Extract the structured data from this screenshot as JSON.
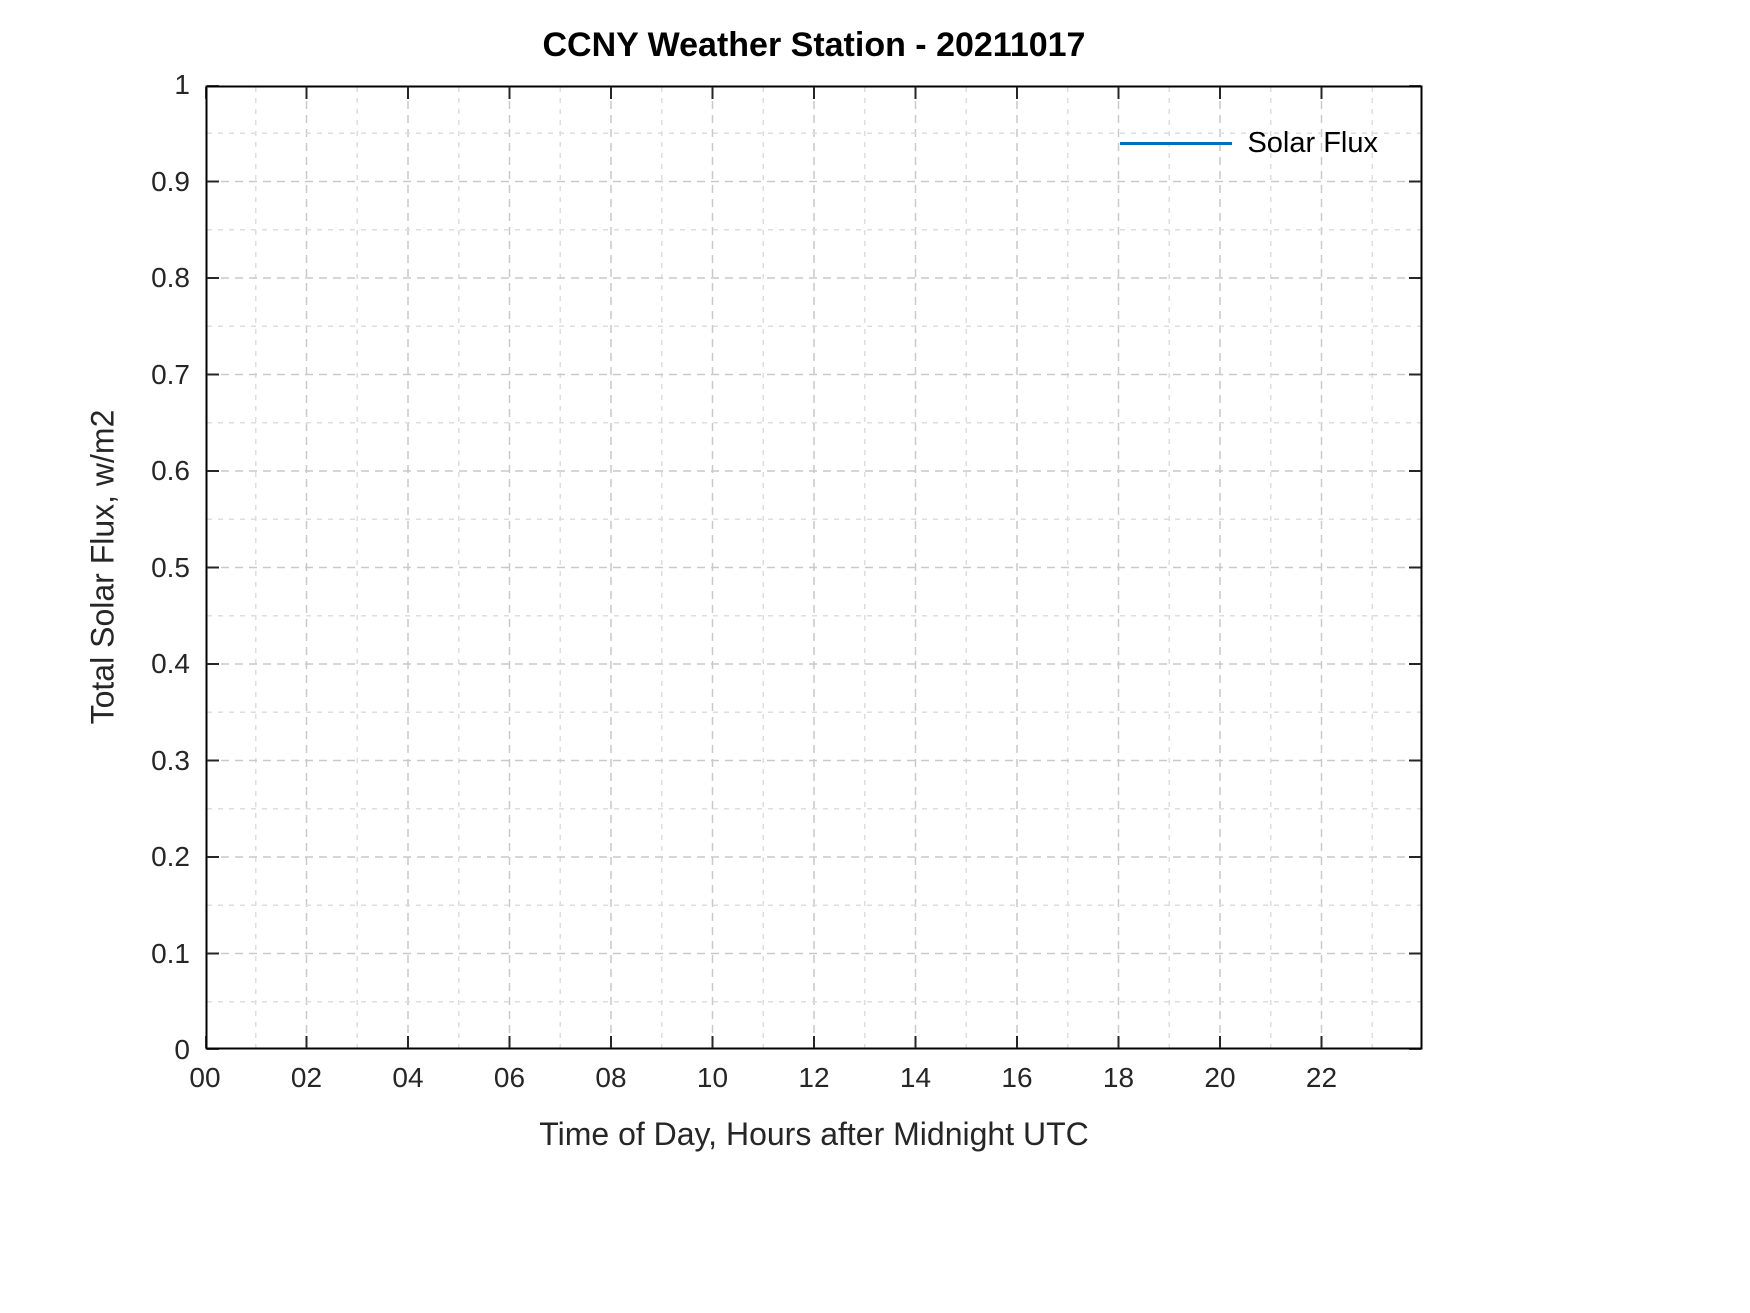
{
  "chart_data": {
    "type": "line",
    "title": "CCNY Weather Station - 20211017",
    "xlabel": "Time of Day, Hours after Midnight UTC",
    "ylabel": "Total Solar Flux, w/m2",
    "xlim": [
      0,
      24
    ],
    "ylim": [
      0,
      1
    ],
    "x_ticks": [
      0,
      2,
      4,
      6,
      8,
      10,
      12,
      14,
      16,
      18,
      20,
      22
    ],
    "x_tick_labels": [
      "00",
      "02",
      "04",
      "06",
      "08",
      "10",
      "12",
      "14",
      "16",
      "18",
      "20",
      "22"
    ],
    "y_ticks": [
      0,
      0.1,
      0.2,
      0.3,
      0.4,
      0.5,
      0.6,
      0.7,
      0.8,
      0.9,
      1
    ],
    "y_tick_labels": [
      "0",
      "0.1",
      "0.2",
      "0.3",
      "0.4",
      "0.5",
      "0.6",
      "0.7",
      "0.8",
      "0.9",
      "1"
    ],
    "x_minor_step": 1,
    "y_minor_step": 0.05,
    "grid": true,
    "minor_grid": true,
    "legend": {
      "position": "top-right",
      "entries": [
        {
          "label": "Solar Flux",
          "color": "#0072BD"
        }
      ]
    },
    "series": [
      {
        "name": "Solar Flux",
        "color": "#0072BD",
        "x": [],
        "y": []
      }
    ]
  },
  "colors": {
    "axis_box": "#000000",
    "tick": "#262626",
    "text": "#262626",
    "grid_major": "#c9c9c9",
    "grid_minor": "#dedede",
    "background": "#ffffff",
    "accent_line": "#0072BD"
  }
}
